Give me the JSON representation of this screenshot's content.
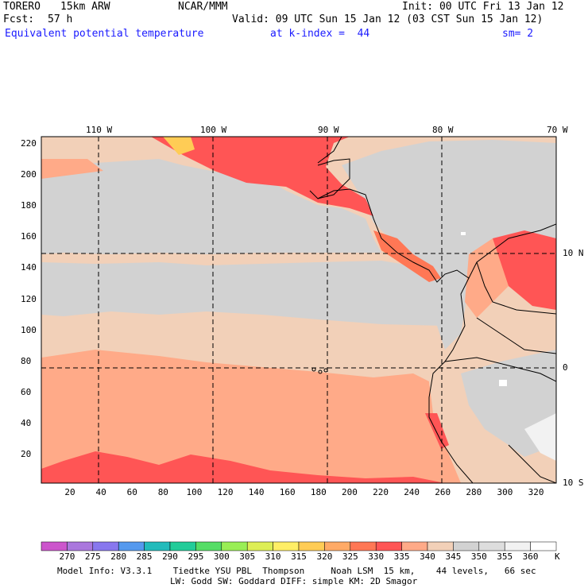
{
  "header": {
    "model": "TORERO",
    "resolution": "15km ARW",
    "org": "NCAR/MMM",
    "init": "Init: 00 UTC Fri 13 Jan 12",
    "fcst_label": "Fcst:",
    "fcst_value": "57 h",
    "valid": "Valid: 09 UTC Sun 15 Jan 12 (03 CST Sun 15 Jan 12)",
    "field": "Equivalent potential temperature",
    "level": "at k-index =  44",
    "smoothing": "sm= 2"
  },
  "map": {
    "lon_labels": [
      "110 W",
      "100 W",
      "90 W",
      "80 W",
      "70 W"
    ],
    "lat_labels": [
      "10 N",
      "0",
      "10 S"
    ],
    "y_ticks": [
      "220",
      "200",
      "180",
      "160",
      "140",
      "120",
      "100",
      "80",
      "60",
      "40",
      "20"
    ],
    "x_ticks": [
      "20",
      "40",
      "60",
      "80",
      "100",
      "120",
      "140",
      "160",
      "180",
      "200",
      "220",
      "240",
      "260",
      "280",
      "300",
      "320"
    ]
  },
  "legend": {
    "labels": [
      "270",
      "275",
      "280",
      "285",
      "290",
      "295",
      "300",
      "305",
      "310",
      "315",
      "320",
      "325",
      "330",
      "335",
      "340",
      "345",
      "350",
      "355",
      "360"
    ],
    "unit": "K",
    "colors": [
      "#cc55cc",
      "#aa77dd",
      "#8877ee",
      "#5599ee",
      "#22bbbb",
      "#22cc99",
      "#55dd66",
      "#99ee55",
      "#ddee55",
      "#ffee66",
      "#ffcc55",
      "#ffaa66",
      "#ff7755",
      "#ff5555",
      "#ffaa88",
      "#f2d0b8",
      "#d2d2d2",
      "#dddddd",
      "#f2f2f2",
      "#ffffff"
    ]
  },
  "footer": {
    "line1": "Model Info: V3.3.1    Tiedtke YSU PBL  Thompson     Noah LSM  15 km,    44 levels,   66 sec",
    "line2": "LW: Godd SW: Goddard DIFF: simple KM: 2D Smagor"
  }
}
